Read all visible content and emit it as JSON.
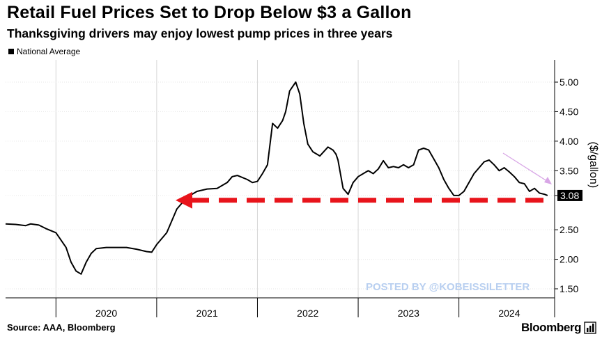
{
  "chart_data": {
    "type": "line",
    "title": "Retail Fuel Prices Set to Drop Below $3 a Gallon",
    "subtitle": "Thanksgiving drivers may enjoy lowest pump prices in three years",
    "legend": [
      "National Average"
    ],
    "ylabel": "($/gallon)",
    "ylim": [
      1.4,
      5.4
    ],
    "yticks": [
      "1.50",
      "2.00",
      "2.50",
      "3.08",
      "3.50",
      "4.00",
      "4.50",
      "5.00"
    ],
    "xlabels": [
      "2020",
      "2021",
      "2022",
      "2023",
      "2024"
    ],
    "last_value": "3.08",
    "reference_level": 3.0,
    "annotation": "POSTED BY @KOBEISSILETTER",
    "series": [
      {
        "name": "National Average",
        "x": [
          2019.5,
          2019.6,
          2019.7,
          2019.75,
          2019.83,
          2019.9,
          2020.0,
          2020.1,
          2020.15,
          2020.2,
          2020.25,
          2020.3,
          2020.35,
          2020.4,
          2020.5,
          2020.6,
          2020.7,
          2020.8,
          2020.9,
          2020.95,
          2021.0,
          2021.1,
          2021.2,
          2021.3,
          2021.4,
          2021.5,
          2021.6,
          2021.7,
          2021.75,
          2021.8,
          2021.9,
          2021.95,
          2022.0,
          2022.05,
          2022.1,
          2022.15,
          2022.2,
          2022.25,
          2022.28,
          2022.32,
          2022.38,
          2022.42,
          2022.46,
          2022.5,
          2022.55,
          2022.62,
          2022.7,
          2022.75,
          2022.78,
          2022.8,
          2022.85,
          2022.9,
          2022.95,
          2023.0,
          2023.05,
          2023.1,
          2023.15,
          2023.2,
          2023.25,
          2023.3,
          2023.35,
          2023.4,
          2023.45,
          2023.5,
          2023.55,
          2023.6,
          2023.65,
          2023.7,
          2023.75,
          2023.8,
          2023.85,
          2023.9,
          2023.95,
          2024.0,
          2024.05,
          2024.1,
          2024.15,
          2024.2,
          2024.25,
          2024.3,
          2024.35,
          2024.4,
          2024.45,
          2024.5,
          2024.55,
          2024.6,
          2024.65,
          2024.7,
          2024.75,
          2024.8,
          2024.85,
          2024.88
        ],
        "values": [
          2.6,
          2.59,
          2.57,
          2.6,
          2.58,
          2.52,
          2.45,
          2.2,
          1.95,
          1.8,
          1.75,
          1.95,
          2.1,
          2.18,
          2.2,
          2.2,
          2.2,
          2.17,
          2.13,
          2.12,
          2.25,
          2.45,
          2.85,
          3.05,
          3.15,
          3.19,
          3.2,
          3.3,
          3.4,
          3.42,
          3.35,
          3.3,
          3.32,
          3.45,
          3.6,
          4.3,
          4.22,
          4.35,
          4.5,
          4.85,
          5.0,
          4.8,
          4.3,
          3.95,
          3.82,
          3.75,
          3.9,
          3.85,
          3.78,
          3.68,
          3.2,
          3.1,
          3.3,
          3.4,
          3.45,
          3.5,
          3.45,
          3.53,
          3.67,
          3.55,
          3.57,
          3.55,
          3.6,
          3.55,
          3.6,
          3.85,
          3.88,
          3.85,
          3.7,
          3.55,
          3.35,
          3.2,
          3.08,
          3.08,
          3.15,
          3.3,
          3.45,
          3.55,
          3.65,
          3.68,
          3.6,
          3.5,
          3.55,
          3.48,
          3.4,
          3.3,
          3.28,
          3.15,
          3.2,
          3.12,
          3.1,
          3.08
        ]
      }
    ]
  },
  "colors": {
    "line": "#000000",
    "reference": "#e8141b",
    "trend_arrow": "#d8a6e6",
    "watermark": "#b8cff0"
  },
  "footer": {
    "source": "Source: AAA, Bloomberg",
    "brand": "Bloomberg"
  }
}
